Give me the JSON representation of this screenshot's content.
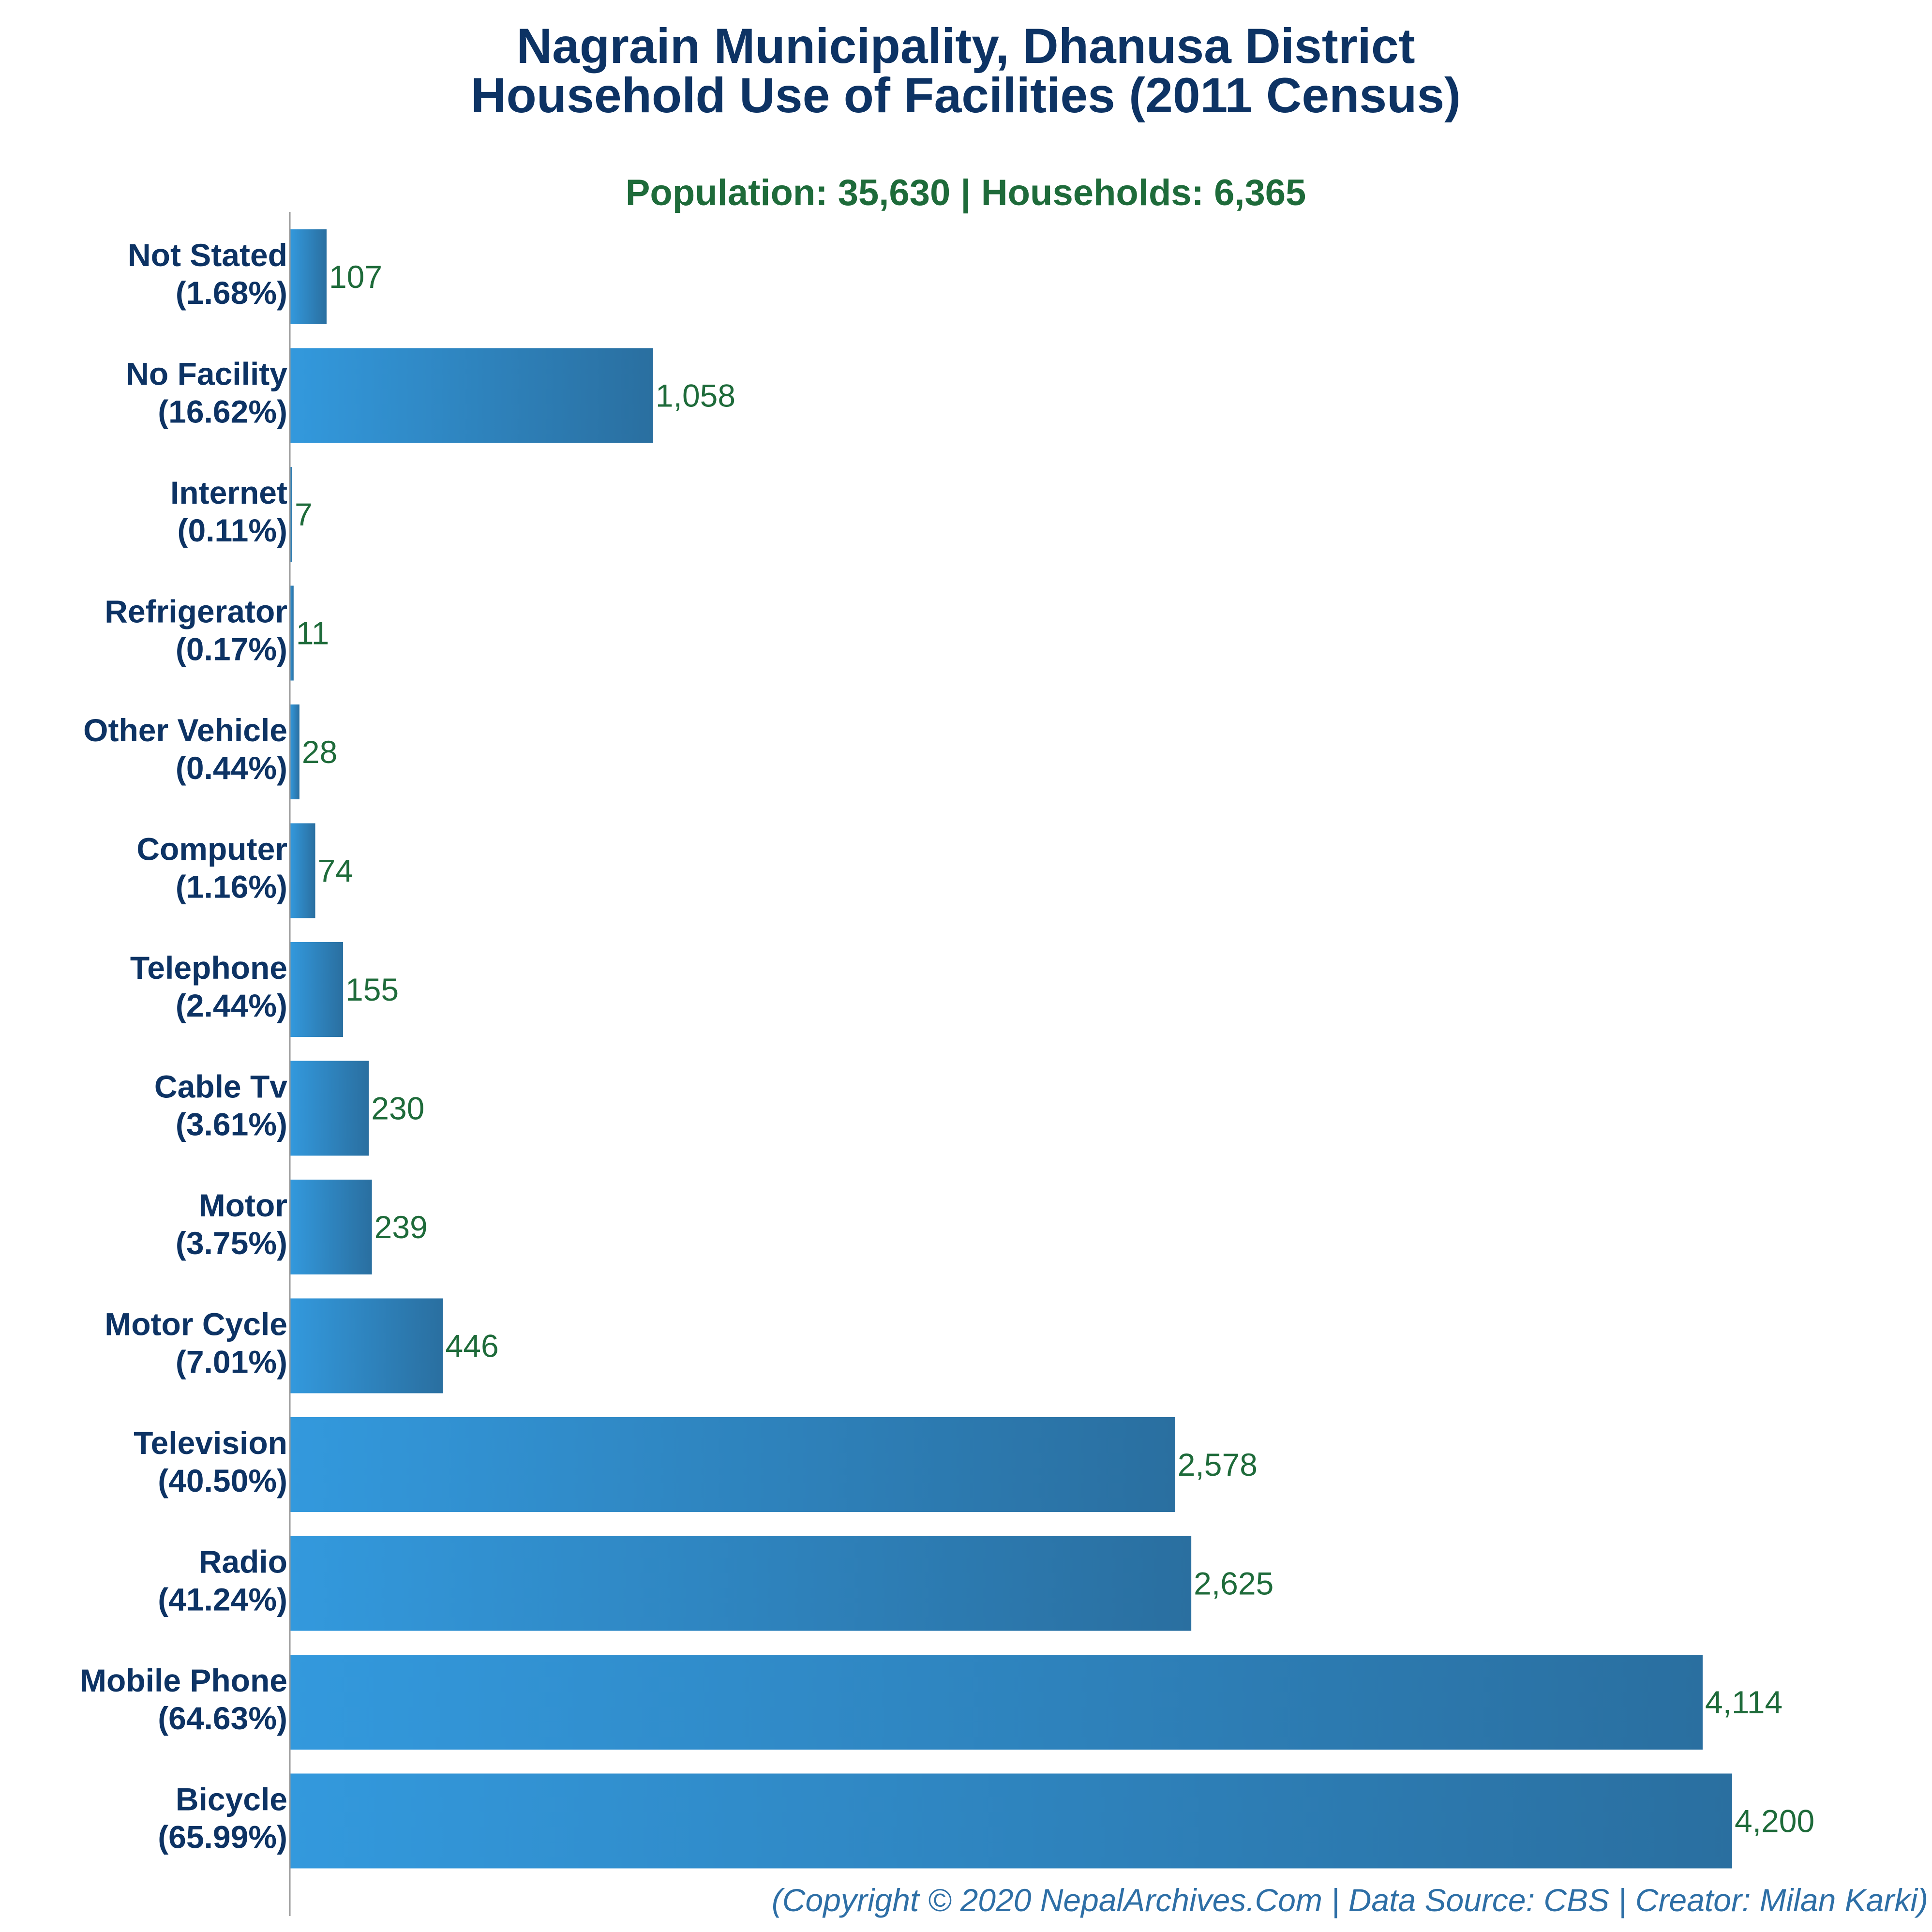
{
  "colors": {
    "title": "#0d3364",
    "subtitle": "#1e6b3a",
    "category_label": "#0d3364",
    "value_label": "#1e6b3a",
    "footer": "#2e6fa6",
    "bar_gradient_start": "#3399dd",
    "bar_gradient_end": "#2a6fa0",
    "axis_line": "#999999"
  },
  "chart_data": {
    "type": "bar",
    "orientation": "horizontal",
    "title_lines": [
      "Nagrain Municipality, Dhanusa District",
      "Household Use of Facilities (2011 Census)"
    ],
    "subtitle": "Population: 35,630 | Households: 6,365",
    "footer": "(Copyright © 2020 NepalArchives.Com | Data Source: CBS | Creator: Milan Karki)",
    "xlabel": "",
    "ylabel": "",
    "xlim": [
      0,
      4200
    ],
    "grid": false,
    "legend": "none",
    "categories": [
      {
        "name": "Not Stated",
        "pct": "(1.68%)",
        "value": 107,
        "value_label": "107"
      },
      {
        "name": "No Facility",
        "pct": "(16.62%)",
        "value": 1058,
        "value_label": "1,058"
      },
      {
        "name": "Internet",
        "pct": "(0.11%)",
        "value": 7,
        "value_label": "7"
      },
      {
        "name": "Refrigerator",
        "pct": "(0.17%)",
        "value": 11,
        "value_label": "11"
      },
      {
        "name": "Other Vehicle",
        "pct": "(0.44%)",
        "value": 28,
        "value_label": "28"
      },
      {
        "name": "Computer",
        "pct": "(1.16%)",
        "value": 74,
        "value_label": "74"
      },
      {
        "name": "Telephone",
        "pct": "(2.44%)",
        "value": 155,
        "value_label": "155"
      },
      {
        "name": "Cable Tv",
        "pct": "(3.61%)",
        "value": 230,
        "value_label": "230"
      },
      {
        "name": "Motor",
        "pct": "(3.75%)",
        "value": 239,
        "value_label": "239"
      },
      {
        "name": "Motor Cycle",
        "pct": "(7.01%)",
        "value": 446,
        "value_label": "446"
      },
      {
        "name": "Television",
        "pct": "(40.50%)",
        "value": 2578,
        "value_label": "2,578"
      },
      {
        "name": "Radio",
        "pct": "(41.24%)",
        "value": 2625,
        "value_label": "2,625"
      },
      {
        "name": "Mobile Phone",
        "pct": "(64.63%)",
        "value": 4114,
        "value_label": "4,114"
      },
      {
        "name": "Bicycle",
        "pct": "(65.99%)",
        "value": 4200,
        "value_label": "4,200"
      }
    ]
  }
}
